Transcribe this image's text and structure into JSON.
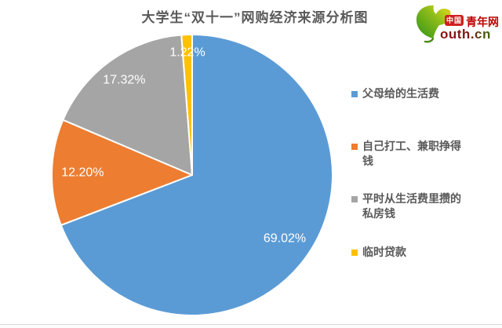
{
  "page": {
    "background": "#ffffff",
    "divider_color": "#d9d9d9"
  },
  "chart_data": {
    "type": "pie",
    "title": "大学生“双十一”网购经济来源分析图",
    "title_color": "#595959",
    "legend_position": "right",
    "direction": "clockwise",
    "start_angle_deg": 0,
    "data_labels": "percent-inside-white",
    "label_color": "#ffffff",
    "legend_text_color": "#595959",
    "slices": [
      {
        "label": "父母给的生活费",
        "value": 69.02,
        "display": "69.02%",
        "color": "#5B9BD5"
      },
      {
        "label": "自己打工、兼职挣得钱",
        "value": 12.2,
        "display": "12.20%",
        "color": "#ED7D31"
      },
      {
        "label": "平时从生活费里攒的私房钱",
        "value": 17.32,
        "display": "17.32%",
        "color": "#A5A5A5"
      },
      {
        "label": "临时贷款",
        "value": 1.22,
        "display": "1.22%",
        "color": "#FFC000"
      }
    ]
  },
  "logo": {
    "badge_text": "中国",
    "brand_text": "青年网",
    "domain_text": "outh.cn",
    "badge_color": "#d02020",
    "brand_color": "#c00000",
    "domain_colors": [
      "#8a1512",
      "#3f6b12"
    ],
    "leaf_colors": [
      "#2f9417",
      "#c8d21d",
      "#f09d14"
    ]
  }
}
